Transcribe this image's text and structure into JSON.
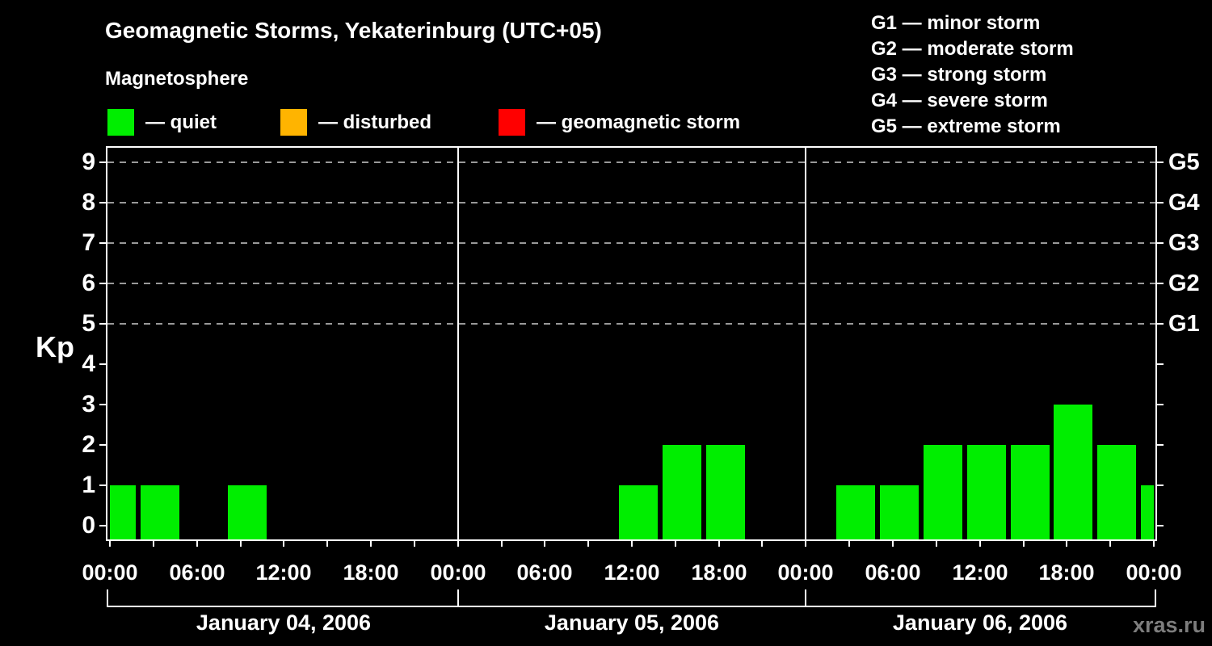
{
  "page": {
    "background": "#000000"
  },
  "header": {
    "title": "Geomagnetic Storms, Yekaterinburg (UTC+05)",
    "subtitle": "Magnetosphere"
  },
  "legend": {
    "items": [
      {
        "label": "— quiet",
        "color": "#00ee00"
      },
      {
        "label": "— disturbed",
        "color": "#ffb400"
      },
      {
        "label": "— geomagnetic storm",
        "color": "#ff0000"
      }
    ]
  },
  "g_scale_legend": [
    "G1 — minor storm",
    "G2 — moderate storm",
    "G3 — strong storm",
    "G4 — severe storm",
    "G5 — extreme storm"
  ],
  "watermark": "xras.ru",
  "chart_data": {
    "type": "bar",
    "ylabel": "Kp",
    "y_ticks": [
      0,
      1,
      2,
      3,
      4,
      5,
      6,
      7,
      8,
      9
    ],
    "ylim": [
      -0.4,
      9.4
    ],
    "grid": {
      "dashed_levels_kp": [
        5,
        6,
        7,
        8,
        9
      ],
      "color": "#999999"
    },
    "right_axis": {
      "labels": [
        {
          "text": "G5",
          "kp": 9
        },
        {
          "text": "G4",
          "kp": 8
        },
        {
          "text": "G3",
          "kp": 7
        },
        {
          "text": "G2",
          "kp": 6
        },
        {
          "text": "G1",
          "kp": 5
        }
      ]
    },
    "x_axis": {
      "minor_tick_hours": 3,
      "major_label_hours": 6,
      "labels": [
        "00:00",
        "06:00",
        "12:00",
        "18:00",
        "00:00",
        "06:00",
        "12:00",
        "18:00",
        "00:00",
        "06:00",
        "12:00",
        "18:00",
        "00:00"
      ]
    },
    "interval_hours": 3,
    "days": [
      {
        "date": "January 04, 2006",
        "kp": [
          1,
          1,
          0,
          1,
          0,
          0,
          0,
          0
        ]
      },
      {
        "date": "January 05, 2006",
        "kp": [
          0,
          0,
          0,
          0,
          1,
          2,
          2,
          0
        ]
      },
      {
        "date": "January 06, 2006",
        "kp": [
          0,
          1,
          1,
          2,
          2,
          2,
          3,
          2
        ]
      }
    ],
    "next_day_partial_kp": 1,
    "color_rule": {
      "quiet_max_kp": 3,
      "disturbed_kp": 4,
      "storm_min_kp": 5
    }
  }
}
